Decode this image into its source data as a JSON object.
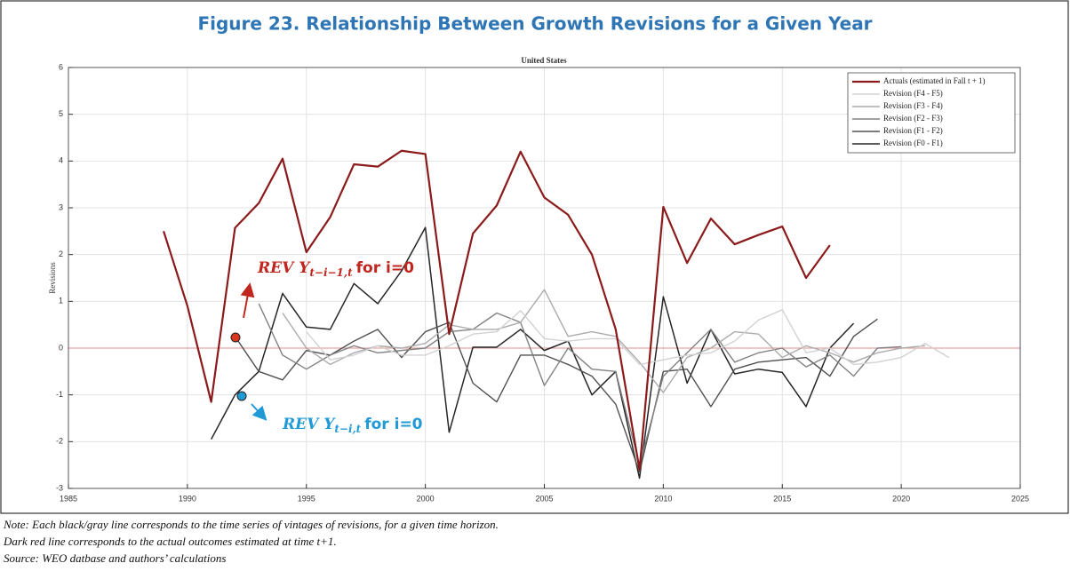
{
  "chart_data": {
    "type": "line",
    "figure_title": "Figure 23. Relationship Between Growth Revisions for a Given Year",
    "title": "United States",
    "ylabel": "Revisions",
    "x": [
      1989,
      1990,
      1991,
      1992,
      1993,
      1994,
      1995,
      1996,
      1997,
      1998,
      1999,
      2000,
      2001,
      2002,
      2003,
      2004,
      2005,
      2006,
      2007,
      2008,
      2009,
      2010,
      2011,
      2012,
      2013,
      2014,
      2015,
      2016,
      2017,
      2018,
      2019,
      2020,
      2021,
      2022
    ],
    "xlim": [
      1985,
      2025
    ],
    "xticks": [
      1985,
      1990,
      1995,
      2000,
      2005,
      2010,
      2015,
      2020,
      2025
    ],
    "ylim": [
      -3,
      6
    ],
    "yticks": [
      -3,
      -2,
      -1,
      0,
      1,
      2,
      3,
      4,
      5,
      6
    ],
    "grid": true,
    "legend": "upper right",
    "reference_line": {
      "value": 0,
      "color": "#e9a3a3"
    },
    "series": [
      {
        "name": "Actuals (estimated in Fall t + 1)",
        "color": "#8b1a1a",
        "width": 2.2,
        "values": [
          2.5,
          0.9,
          -1.15,
          2.57,
          3.1,
          4.05,
          2.05,
          2.8,
          3.93,
          3.88,
          4.22,
          4.15,
          0.3,
          2.45,
          3.05,
          4.2,
          3.22,
          2.85,
          2.0,
          0.4,
          -2.6,
          3.02,
          1.82,
          2.77,
          2.22,
          2.42,
          2.6,
          1.5,
          2.2,
          null,
          null,
          null,
          null,
          null
        ]
      },
      {
        "name": "Revision (F4 - F5)",
        "color": "#d2d2d2",
        "width": 1.4,
        "values": [
          null,
          null,
          null,
          null,
          null,
          null,
          0.35,
          -0.25,
          -0.15,
          0.05,
          -0.15,
          -0.15,
          0.05,
          0.3,
          0.35,
          0.8,
          0.2,
          0.15,
          0.2,
          0.2,
          -0.35,
          -0.25,
          -0.15,
          -0.1,
          0.15,
          0.6,
          0.82,
          -0.1,
          0.0,
          -0.35,
          -0.3,
          -0.2,
          0.1,
          -0.2
        ]
      },
      {
        "name": "Revision (F3 - F4)",
        "color": "#ababab",
        "width": 1.4,
        "values": [
          null,
          null,
          null,
          null,
          null,
          0.75,
          0.0,
          -0.35,
          -0.1,
          0.05,
          0.0,
          0.1,
          0.5,
          0.4,
          0.4,
          0.55,
          1.25,
          0.25,
          0.35,
          0.25,
          -0.3,
          -0.95,
          -0.2,
          0.0,
          0.35,
          0.3,
          -0.2,
          0.05,
          -0.1,
          -0.3,
          -0.1,
          0.0,
          0.05,
          null
        ]
      },
      {
        "name": "Revision (F2 - F3)",
        "color": "#828282",
        "width": 1.4,
        "values": [
          null,
          null,
          null,
          null,
          0.95,
          -0.15,
          -0.45,
          -0.15,
          0.05,
          -0.1,
          -0.05,
          0.0,
          0.35,
          0.4,
          0.75,
          0.55,
          -0.8,
          0.0,
          -0.45,
          -0.5,
          -2.5,
          -0.6,
          -0.1,
          0.4,
          -0.3,
          -0.1,
          0.0,
          -0.4,
          -0.15,
          -0.6,
          0.0,
          0.03,
          null,
          null
        ]
      },
      {
        "name": "Revision (F1 - F2)",
        "color": "#505050",
        "width": 1.4,
        "values": [
          null,
          null,
          null,
          0.25,
          -0.5,
          -0.68,
          -0.05,
          -0.15,
          0.15,
          0.4,
          -0.2,
          0.35,
          0.55,
          -0.75,
          -1.15,
          -0.15,
          -0.15,
          -0.35,
          -0.6,
          -1.2,
          -2.65,
          -0.5,
          -0.45,
          -1.25,
          -0.45,
          -0.3,
          -0.25,
          -0.2,
          -0.6,
          0.25,
          0.62,
          null,
          null,
          null
        ]
      },
      {
        "name": "Revision (F0 - F1)",
        "color": "#262626",
        "width": 1.5,
        "values": [
          null,
          null,
          -1.95,
          -1.0,
          -0.5,
          1.17,
          0.45,
          0.4,
          1.38,
          0.95,
          1.65,
          2.58,
          -1.8,
          0.02,
          0.02,
          0.4,
          -0.05,
          0.15,
          -1.0,
          -0.5,
          -2.78,
          1.1,
          -0.75,
          0.4,
          -0.55,
          -0.45,
          -0.52,
          -1.25,
          0.0,
          0.53,
          null,
          null,
          null,
          null
        ]
      }
    ],
    "annotations": [
      {
        "text": "REV Y",
        "subscript": "t−i−1,t",
        "suffix": "for i=0",
        "color": "#c0261d"
      },
      {
        "text": "REV Y",
        "subscript": "t−i,t",
        "suffix": "for i=0",
        "color": "#1f9ad6"
      }
    ],
    "notes": [
      "Note: Each black/gray line corresponds to the time series of vintages of revisions, for a given time horizon.",
      "Dark red line corresponds to the actual outcomes estimated at time t+1.",
      "Source: WEO datbase and authors’ calculations"
    ]
  }
}
